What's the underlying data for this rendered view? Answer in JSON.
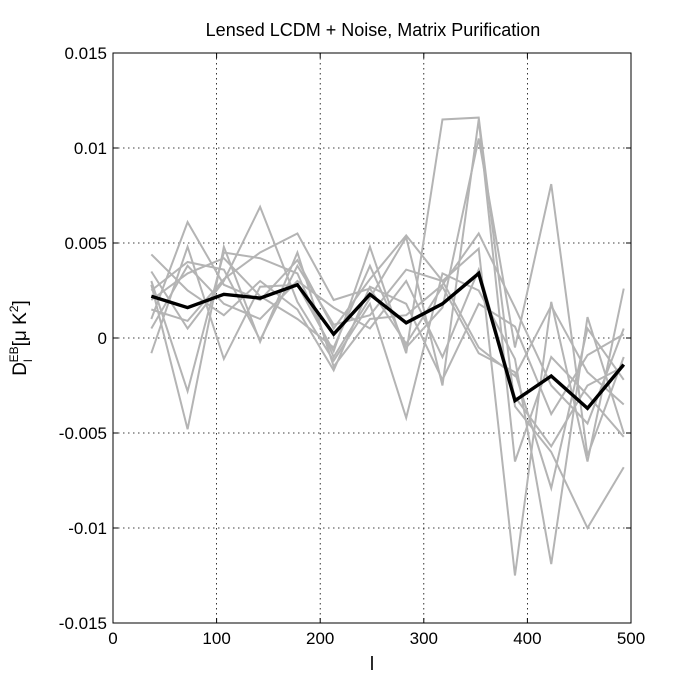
{
  "chart_data": {
    "type": "line",
    "title": "Lensed LCDM + Noise, Matrix Purification",
    "xlabel": "l",
    "ylabel": {
      "main": "D",
      "subscript": "l",
      "superscript": "EB",
      "units": "[μ K",
      "units_exponent": "2",
      "units_close": "]"
    },
    "xlim": [
      0,
      500
    ],
    "ylim": [
      -0.015,
      0.015
    ],
    "xticks": [
      0,
      100,
      200,
      300,
      400,
      500
    ],
    "xtick_labels": [
      "0",
      "100",
      "200",
      "300",
      "400",
      "500"
    ],
    "yticks": [
      -0.015,
      -0.01,
      -0.005,
      0,
      0.005,
      0.01,
      0.015
    ],
    "ytick_labels": [
      "-0.015",
      "-0.01",
      "-0.005",
      "0",
      "0.005",
      "0.01",
      "0.015"
    ],
    "grid": true,
    "x": [
      37,
      72,
      107,
      142,
      178,
      213,
      248,
      283,
      318,
      353,
      388,
      423,
      458,
      493
    ],
    "series": [
      {
        "color": "#000000",
        "values": [
          0.0022,
          0.0016,
          0.0023,
          0.0021,
          0.0028,
          0.0002,
          0.0023,
          0.0008,
          0.0018,
          0.0034,
          -0.0033,
          -0.002,
          -0.0037,
          -0.0014
        ]
      },
      {
        "color": "#b4b4b4",
        "values": [
          0.003,
          -0.0028,
          0.0045,
          0.0042,
          0.0034,
          -0.001,
          0.0021,
          0.0053,
          -0.0025,
          0.0115,
          -0.0065,
          -0.001,
          -0.003,
          -0.0052
        ]
      },
      {
        "color": "#b4b4b4",
        "values": [
          0.001,
          0.0061,
          0.0028,
          0.002,
          0.0041,
          0.0005,
          0.0031,
          0.0054,
          0.003,
          0.0047,
          -0.0125,
          0.0019,
          -0.0065,
          0.0026
        ]
      },
      {
        "color": "#b4b4b4",
        "values": [
          0.0035,
          0.0005,
          0.003,
          0.0069,
          0.0019,
          -0.0012,
          0.0018,
          -0.0042,
          0.0034,
          0.0025,
          -0.0011,
          -0.0119,
          0.0011,
          -0.005
        ]
      },
      {
        "color": "#b4b4b4",
        "values": [
          -0.0008,
          0.0048,
          -0.0011,
          0.0027,
          0.0028,
          -0.0007,
          0.0048,
          -0.0008,
          0.0115,
          0.0116,
          -0.0036,
          -0.006,
          -0.01,
          -0.0068
        ]
      },
      {
        "color": "#b4b4b4",
        "values": [
          0.002,
          0.0034,
          0.0042,
          0.0022,
          0.001,
          -0.0005,
          0.0038,
          -0.0005,
          0.0016,
          0.0105,
          -0.0005,
          0.0081,
          -0.0062,
          -0.001
        ]
      },
      {
        "color": "#b4b4b4",
        "values": [
          0.0028,
          -0.0048,
          0.0048,
          -0.0002,
          0.0045,
          -0.0015,
          0.001,
          0.0012,
          0.0028,
          0.0055,
          0.0016,
          -0.0025,
          -0.0045,
          0.0005
        ]
      },
      {
        "color": "#b4b4b4",
        "values": [
          0.0015,
          0.0009,
          0.0031,
          0.0045,
          0.0055,
          0.002,
          0.0026,
          -0.0003,
          0.0027,
          -0.0008,
          -0.0018,
          -0.0079,
          0.0005,
          -0.0022
        ]
      },
      {
        "color": "#b4b4b4",
        "values": [
          0.0005,
          0.0038,
          0.0018,
          0.001,
          0.003,
          0.0016,
          0.0005,
          0.003,
          -0.001,
          0.0036,
          -0.0031,
          -0.0057,
          -0.0025,
          -0.0015
        ]
      },
      {
        "color": "#b4b4b4",
        "values": [
          0.0044,
          0.0025,
          0.0012,
          0.003,
          0.0015,
          -0.0017,
          0.0027,
          0.0018,
          -0.0022,
          0.0018,
          0.0006,
          -0.004,
          -0.0009,
          0.0002
        ]
      },
      {
        "color": "#b4b4b4",
        "values": [
          0.0025,
          0.004,
          0.0036,
          -0.0001,
          0.0038,
          0.0007,
          0.0012,
          0.0036,
          0.003,
          -0.0005,
          -0.002,
          0.0017,
          -0.0018,
          -0.0035
        ]
      }
    ]
  }
}
